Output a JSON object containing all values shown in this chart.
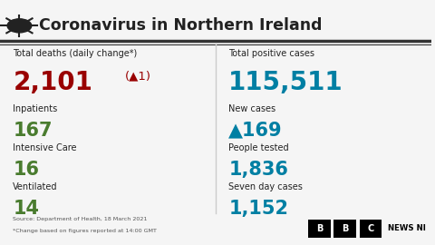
{
  "title": "Coronavirus in Northern Ireland",
  "bg_color": "#f5f5f5",
  "title_color": "#222222",
  "label_color": "#222222",
  "deaths_label": "Total deaths (daily change*)",
  "deaths_value": "2,101",
  "deaths_change": "(▲1)",
  "deaths_value_color": "#990000",
  "deaths_change_color": "#990000",
  "inpatients_label": "Inpatients",
  "inpatients_value": "167",
  "inpatients_color": "#4a7c2f",
  "icu_label": "Intensive Care",
  "icu_value": "16",
  "icu_color": "#4a7c2f",
  "ventilated_label": "Ventilated",
  "ventilated_value": "14",
  "ventilated_color": "#4a7c2f",
  "cases_label": "Total positive cases",
  "cases_value": "115,511",
  "cases_value_color": "#007fa3",
  "new_cases_label": "New cases",
  "new_cases_value": "▲169",
  "new_cases_color": "#007fa3",
  "people_tested_label": "People tested",
  "people_tested_value": "1,836",
  "people_tested_color": "#007fa3",
  "seven_day_label": "Seven day cases",
  "seven_day_value": "1,152",
  "seven_day_color": "#007fa3",
  "source_line1": "Source: Department of Health, 18 March 2021",
  "source_line2": "*Change based on figures reported at 14:00 GMT",
  "source_color": "#555555"
}
